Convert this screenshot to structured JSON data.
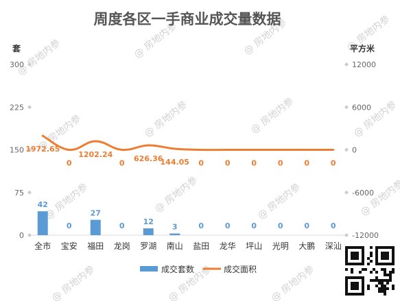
{
  "chart_data": {
    "type": "bar",
    "title": "周度各区一手商业成交量数据",
    "categories": [
      "全市",
      "宝安",
      "福田",
      "龙岗",
      "罗湖",
      "南山",
      "盐田",
      "龙华",
      "坪山",
      "光明",
      "大鹏",
      "深汕"
    ],
    "left_axis": {
      "unit": "套",
      "ticks": [
        "300",
        "225",
        "150",
        "75",
        "0"
      ],
      "ylim": [
        0,
        300
      ]
    },
    "right_axis": {
      "unit": "平方米",
      "ticks": [
        "12000",
        "6000",
        "0",
        "-6000",
        "-12000"
      ],
      "ylim": [
        -12000,
        12000
      ]
    },
    "series": [
      {
        "name": "成交套数",
        "type": "bar",
        "axis": "left",
        "color": "#5b9bd5",
        "values": [
          42,
          0,
          27,
          0,
          12,
          3,
          0,
          0,
          0,
          0,
          0,
          0
        ],
        "labels": [
          "42",
          "0",
          "27",
          "0",
          "12",
          "3",
          "0",
          "0",
          "0",
          "0",
          "0",
          "0"
        ]
      },
      {
        "name": "成交面积",
        "type": "line",
        "axis": "right",
        "color": "#ed7d31",
        "values": [
          1972.65,
          0,
          1202.24,
          0,
          626.36,
          144.05,
          0,
          0,
          0,
          0,
          0,
          0
        ],
        "labels": [
          "1972.65",
          "0",
          "1202.24",
          "0",
          "626.36",
          "144.05",
          "0",
          "0",
          "0",
          "0",
          "0",
          "0"
        ]
      }
    ],
    "grid": false,
    "legend_position": "bottom"
  },
  "watermark": "@ 房地内参"
}
